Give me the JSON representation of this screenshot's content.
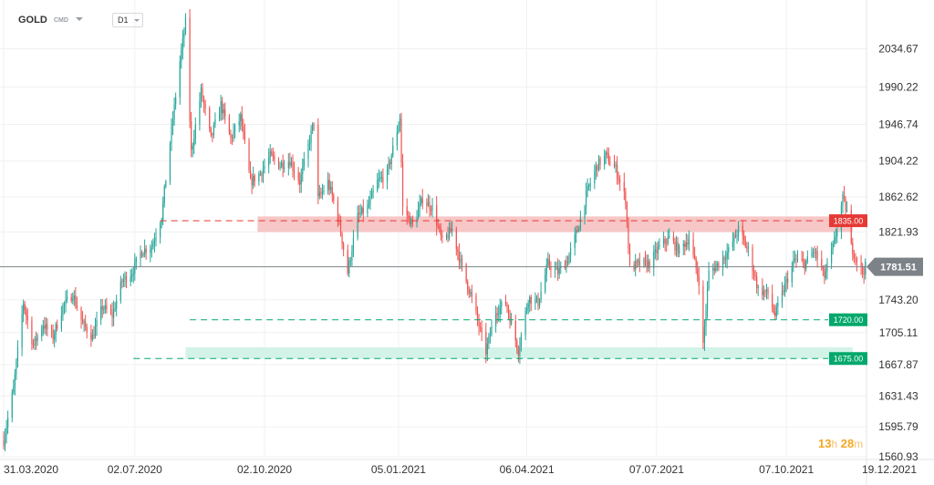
{
  "header": {
    "symbol": "GOLD",
    "market": "CMD",
    "timeframe": "D1"
  },
  "timer": {
    "hours": "13",
    "hours_unit": "h",
    "minutes": "28",
    "minutes_unit": "m"
  },
  "colors": {
    "bull": "#26a69a",
    "bear": "#ef5350",
    "resistance": "#e53935",
    "support": "#00a86b",
    "resistance_zone": "#f7c6c6",
    "support_zone": "#d3f3e8",
    "current": "#7c8287"
  },
  "chart_data": {
    "type": "candlestick",
    "title": "",
    "ylim": [
      1560.93,
      2068.0
    ],
    "x_range": [
      "2020-03-31",
      "2021-12-19"
    ],
    "y_ticks": [
      "2034.67",
      "1990.22",
      "1946.74",
      "1904.22",
      "1862.62",
      "1821.93",
      "1743.20",
      "1705.11",
      "1667.87",
      "1631.43",
      "1595.79",
      "1560.93"
    ],
    "x_ticks": [
      "31.03.2020",
      "02.07.2020",
      "02.10.2020",
      "05.01.2021",
      "06.04.2021",
      "07.07.2021",
      "07.10.2021",
      "19.12.2021"
    ],
    "current_price": {
      "value": 1781.51,
      "label": "1781.51"
    },
    "levels": [
      {
        "value": 1835.0,
        "label": "1835.00",
        "kind": "resistance",
        "from": "2020-07-20"
      },
      {
        "value": 1720.0,
        "label": "1720.00",
        "kind": "support",
        "from": "2020-08-10"
      },
      {
        "value": 1675.0,
        "label": "1675.00",
        "kind": "support",
        "from": "2020-07-01"
      }
    ],
    "zones": [
      {
        "from": "2020-09-27",
        "to": "2021-11-23",
        "low": 1821.9,
        "high": 1840.0,
        "kind": "resistance"
      },
      {
        "from": "2020-08-07",
        "to": "2021-11-23",
        "low": 1675.0,
        "high": 1688.0,
        "kind": "support"
      }
    ],
    "price_path": [
      [
        "2020-03-31",
        1580
      ],
      [
        "2020-04-07",
        1640
      ],
      [
        "2020-04-14",
        1740
      ],
      [
        "2020-04-21",
        1690
      ],
      [
        "2020-04-28",
        1715
      ],
      [
        "2020-05-05",
        1700
      ],
      [
        "2020-05-12",
        1735
      ],
      [
        "2020-05-19",
        1750
      ],
      [
        "2020-05-26",
        1715
      ],
      [
        "2020-06-02",
        1700
      ],
      [
        "2020-06-09",
        1735
      ],
      [
        "2020-06-16",
        1725
      ],
      [
        "2020-06-23",
        1765
      ],
      [
        "2020-06-30",
        1775
      ],
      [
        "2020-07-07",
        1800
      ],
      [
        "2020-07-14",
        1805
      ],
      [
        "2020-07-21",
        1840
      ],
      [
        "2020-07-28",
        1940
      ],
      [
        "2020-08-03",
        2020
      ],
      [
        "2020-08-07",
        2065
      ],
      [
        "2020-08-11",
        1915
      ],
      [
        "2020-08-18",
        1985
      ],
      [
        "2020-08-25",
        1930
      ],
      [
        "2020-09-01",
        1970
      ],
      [
        "2020-09-08",
        1930
      ],
      [
        "2020-09-15",
        1955
      ],
      [
        "2020-09-22",
        1880
      ],
      [
        "2020-09-29",
        1890
      ],
      [
        "2020-10-06",
        1910
      ],
      [
        "2020-10-13",
        1900
      ],
      [
        "2020-10-20",
        1905
      ],
      [
        "2020-10-27",
        1880
      ],
      [
        "2020-11-06",
        1950
      ],
      [
        "2020-11-09",
        1860
      ],
      [
        "2020-11-16",
        1880
      ],
      [
        "2020-11-23",
        1840
      ],
      [
        "2020-11-30",
        1775
      ],
      [
        "2020-12-07",
        1840
      ],
      [
        "2020-12-14",
        1850
      ],
      [
        "2020-12-21",
        1880
      ],
      [
        "2020-12-28",
        1890
      ],
      [
        "2021-01-06",
        1955
      ],
      [
        "2021-01-08",
        1850
      ],
      [
        "2021-01-15",
        1830
      ],
      [
        "2021-01-22",
        1860
      ],
      [
        "2021-01-29",
        1850
      ],
      [
        "2021-02-05",
        1810
      ],
      [
        "2021-02-12",
        1825
      ],
      [
        "2021-02-19",
        1780
      ],
      [
        "2021-02-26",
        1745
      ],
      [
        "2021-03-05",
        1700
      ],
      [
        "2021-03-08",
        1683
      ],
      [
        "2021-03-15",
        1730
      ],
      [
        "2021-03-22",
        1740
      ],
      [
        "2021-03-31",
        1684
      ],
      [
        "2021-04-07",
        1745
      ],
      [
        "2021-04-14",
        1740
      ],
      [
        "2021-04-21",
        1785
      ],
      [
        "2021-04-28",
        1775
      ],
      [
        "2021-05-05",
        1790
      ],
      [
        "2021-05-12",
        1825
      ],
      [
        "2021-05-19",
        1870
      ],
      [
        "2021-05-26",
        1900
      ],
      [
        "2021-06-01",
        1910
      ],
      [
        "2021-06-08",
        1895
      ],
      [
        "2021-06-15",
        1860
      ],
      [
        "2021-06-18",
        1780
      ],
      [
        "2021-06-25",
        1785
      ],
      [
        "2021-07-02",
        1785
      ],
      [
        "2021-07-09",
        1805
      ],
      [
        "2021-07-16",
        1815
      ],
      [
        "2021-07-23",
        1800
      ],
      [
        "2021-07-30",
        1815
      ],
      [
        "2021-08-06",
        1765
      ],
      [
        "2021-08-09",
        1690
      ],
      [
        "2021-08-13",
        1775
      ],
      [
        "2021-08-20",
        1785
      ],
      [
        "2021-08-27",
        1800
      ],
      [
        "2021-09-03",
        1825
      ],
      [
        "2021-09-10",
        1800
      ],
      [
        "2021-09-17",
        1755
      ],
      [
        "2021-09-24",
        1750
      ],
      [
        "2021-09-29",
        1725
      ],
      [
        "2021-10-06",
        1760
      ],
      [
        "2021-10-13",
        1790
      ],
      [
        "2021-10-20",
        1785
      ],
      [
        "2021-10-27",
        1800
      ],
      [
        "2021-11-03",
        1770
      ],
      [
        "2021-11-10",
        1810
      ],
      [
        "2021-11-16",
        1860
      ],
      [
        "2021-11-19",
        1845
      ],
      [
        "2021-11-22",
        1805
      ],
      [
        "2021-11-26",
        1790
      ],
      [
        "2021-11-30",
        1775
      ],
      [
        "2021-12-02",
        1781.51
      ]
    ]
  }
}
